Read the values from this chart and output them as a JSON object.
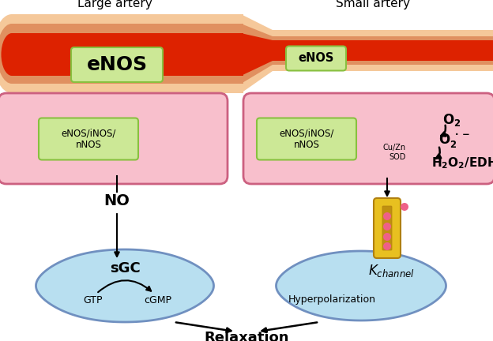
{
  "bg_color": "#ffffff",
  "large_artery_label": "Large artery",
  "small_artery_label": "Small artery",
  "enos_label": "eNOS",
  "nos_label": "eNOS/iNOS/\nnNOS",
  "no_label": "NO",
  "sgc_label": "sGC",
  "gtp_label": "GTP",
  "cgmp_label": "cGMP",
  "relaxation_label": "Relaxation",
  "cuzn_sod_label": "Cu/Zn\nSOD",
  "hyperpolarization_label": "Hyperpolarization",
  "artery_outer_color": "#f5c89a",
  "artery_wall_color": "#e09060",
  "artery_inner_color": "#dd2200",
  "cell_bg_color": "#f8bfcc",
  "cell_border_color": "#cc6080",
  "enos_box_color": "#cce896",
  "enos_box_border": "#88c040",
  "smooth_cell_color": "#b8dff0",
  "smooth_cell_border": "#7090c0",
  "arrow_color": "#111111",
  "k_channel_body_color": "#e8c020",
  "k_channel_border_color": "#b08010",
  "k_channel_inner_color": "#c09010",
  "pink_dot_color": "#ee6088"
}
